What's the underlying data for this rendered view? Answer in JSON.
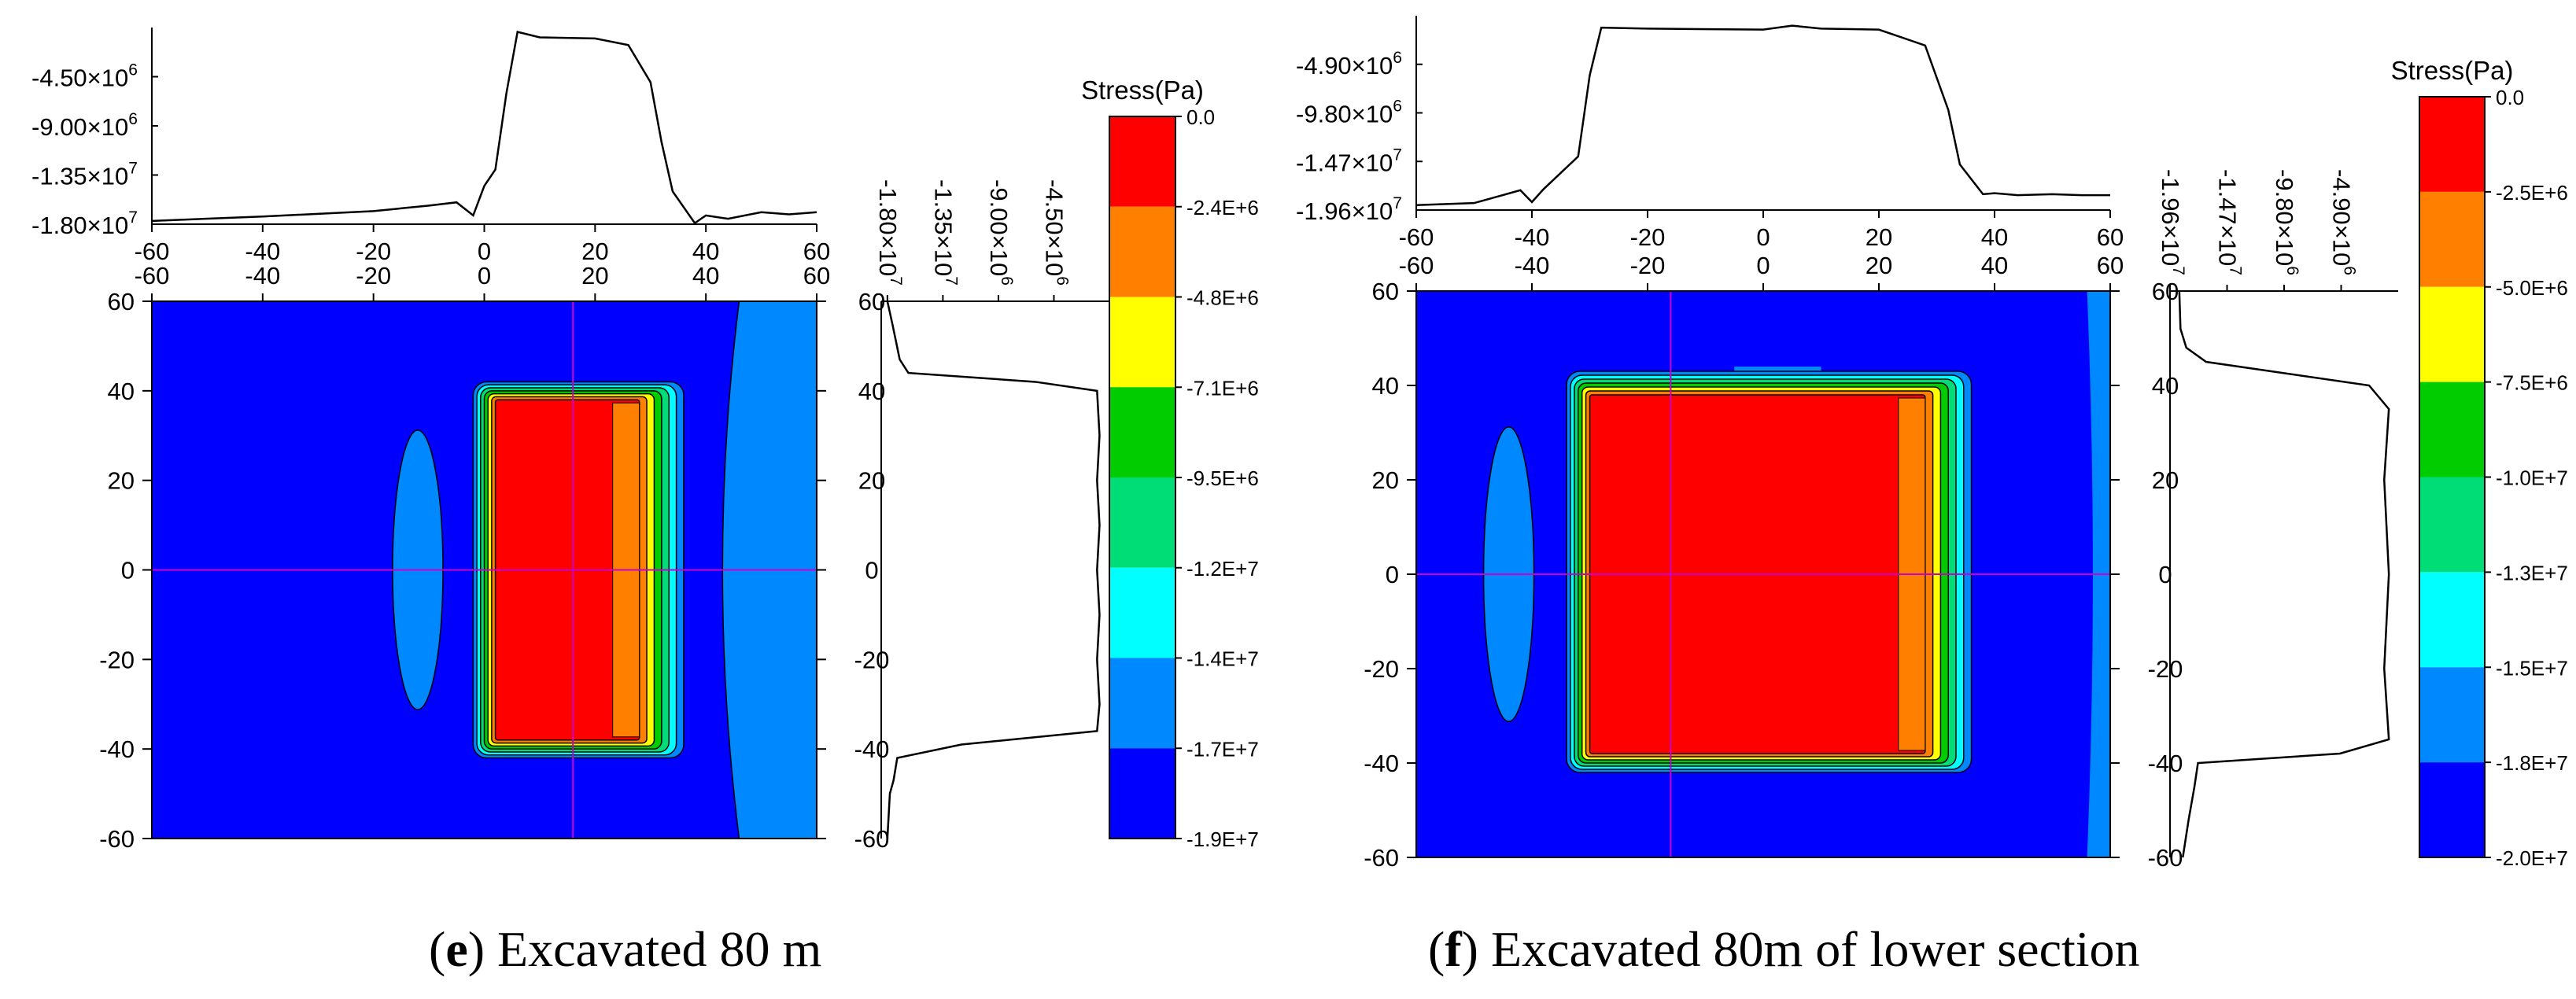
{
  "figure": {
    "captions": [
      {
        "letter": "e",
        "text": "Excavated 80 m"
      },
      {
        "letter": "f",
        "text": "Excavated 80m of lower section"
      }
    ]
  },
  "chart_data": [
    {
      "type": "heatmap",
      "panel": "e",
      "title": "Excavated 80 m",
      "x_ticks": [
        -60,
        -40,
        -20,
        0,
        20,
        40,
        60
      ],
      "y_ticks": [
        60,
        40,
        20,
        0,
        -20,
        -40,
        -60
      ],
      "xlim": [
        -60,
        60
      ],
      "ylim": [
        -60,
        60
      ],
      "colorbar": {
        "title": "Stress(Pa)",
        "levels": [
          "0.0",
          "-2.4E+6",
          "-4.8E+6",
          "-7.1E+6",
          "-9.5E+6",
          "-1.2E+7",
          "-1.4E+7",
          "-1.7E+7",
          "-1.9E+7"
        ],
        "colors": [
          "#ff0000",
          "#ff7f00",
          "#ffff00",
          "#00cc00",
          "#00dd77",
          "#00ffff",
          "#0088ff",
          "#0000ff"
        ]
      },
      "core_region": {
        "x": [
          2,
          28
        ],
        "y": [
          -38,
          38
        ],
        "stress": "0.0"
      },
      "band_region": {
        "x": [
          -2,
          36
        ],
        "y": [
          -42,
          42
        ]
      },
      "crosshair": {
        "x": 16,
        "y": 0
      },
      "top_profile": {
        "tick_labels": [
          "-4.50×10^6",
          "-9.00×10^6",
          "-1.35×10^7",
          "-1.80×10^7"
        ],
        "tick_values": [
          -4500000,
          -9000000,
          -13500000,
          -18000000
        ],
        "range": [
          -18000000,
          0
        ],
        "x": [
          -60,
          -40,
          -20,
          -10,
          -5,
          -2,
          0,
          2,
          4,
          6,
          10,
          20,
          26,
          30,
          32,
          34,
          38,
          40,
          44,
          50,
          55,
          60
        ],
        "y": [
          -17700000,
          -17300000,
          -16800000,
          -16300000,
          -16000000,
          -17200000,
          -14500000,
          -13000000,
          -6000000,
          -400000,
          -900000,
          -1000000,
          -1600000,
          -5000000,
          -10500000,
          -15000000,
          -17900000,
          -17200000,
          -17500000,
          -16900000,
          -17100000,
          -16900000
        ]
      },
      "side_profile": {
        "tick_labels": [
          "-1.80×10^7",
          "-1.35×10^7",
          "-9.00×10^6",
          "-4.50×10^6"
        ],
        "tick_values": [
          -18000000,
          -13500000,
          -9000000,
          -4500000
        ],
        "range": [
          -18500000,
          0
        ],
        "y": [
          60,
          55,
          47,
          44,
          42,
          40,
          30,
          20,
          10,
          0,
          -10,
          -20,
          -30,
          -36,
          -39,
          -42,
          -47,
          -50,
          -60
        ],
        "x": [
          -18000000,
          -17600000,
          -17000000,
          -16300000,
          -6000000,
          -1000000,
          -800000,
          -1000000,
          -800000,
          -1000000,
          -800000,
          -1000000,
          -800000,
          -1000000,
          -12000000,
          -17200000,
          -17500000,
          -17800000,
          -18000000
        ]
      }
    },
    {
      "type": "heatmap",
      "panel": "f",
      "title": "Excavated 80m of lower section",
      "x_ticks": [
        -60,
        -40,
        -20,
        0,
        20,
        40,
        60
      ],
      "y_ticks": [
        60,
        40,
        20,
        0,
        -20,
        -40,
        -60
      ],
      "xlim": [
        -60,
        60
      ],
      "ylim": [
        -60,
        60
      ],
      "colorbar": {
        "title": "Stress(Pa)",
        "levels": [
          "0.0",
          "-2.5E+6",
          "-5.0E+6",
          "-7.5E+6",
          "-1.0E+7",
          "-1.3E+7",
          "-1.5E+7",
          "-1.8E+7",
          "-2.0E+7"
        ],
        "colors": [
          "#ff0000",
          "#ff7f00",
          "#ffff00",
          "#00cc00",
          "#00dd77",
          "#00ffff",
          "#0088ff",
          "#0000ff"
        ]
      },
      "core_region": {
        "x": [
          -30,
          28
        ],
        "y": [
          -38,
          38
        ],
        "stress": "0.0"
      },
      "band_region": {
        "x": [
          -34,
          36
        ],
        "y": [
          -42,
          43
        ]
      },
      "crosshair": {
        "x": -16,
        "y": 0
      },
      "top_profile": {
        "tick_labels": [
          "-4.90×10^6",
          "-9.80×10^6",
          "-1.47×10^7",
          "-1.96×10^7"
        ],
        "tick_values": [
          -4900000,
          -9800000,
          -14700000,
          -19600000
        ],
        "range": [
          -19600000,
          0
        ],
        "x": [
          -60,
          -50,
          -42,
          -40,
          -38,
          -32,
          -30,
          -28,
          -20,
          0,
          5,
          10,
          20,
          28,
          32,
          34,
          38,
          40,
          44,
          50,
          55,
          60
        ],
        "y": [
          -19100000,
          -18900000,
          -17600000,
          -18800000,
          -17500000,
          -14200000,
          -6000000,
          -1200000,
          -1300000,
          -1400000,
          -1000000,
          -1300000,
          -1400000,
          -3000000,
          -9500000,
          -15000000,
          -18000000,
          -17900000,
          -18100000,
          -18000000,
          -18100000,
          -18100000
        ]
      },
      "side_profile": {
        "tick_labels": [
          "-1.96×10^7",
          "-1.47×10^7",
          "-9.80×10^6",
          "-4.90×10^6"
        ],
        "tick_values": [
          -19600000,
          -14700000,
          -9800000,
          -4900000
        ],
        "range": [
          -19600000,
          0
        ],
        "y": [
          60,
          52,
          48,
          45,
          40,
          35,
          20,
          0,
          -20,
          -35,
          -38,
          -40,
          -45,
          -52,
          -60
        ],
        "x": [
          -18800000,
          -18700000,
          -18200000,
          -16500000,
          -2500000,
          -800000,
          -1200000,
          -800000,
          -1200000,
          -800000,
          -5000000,
          -17200000,
          -17500000,
          -18000000,
          -18500000
        ]
      }
    }
  ]
}
